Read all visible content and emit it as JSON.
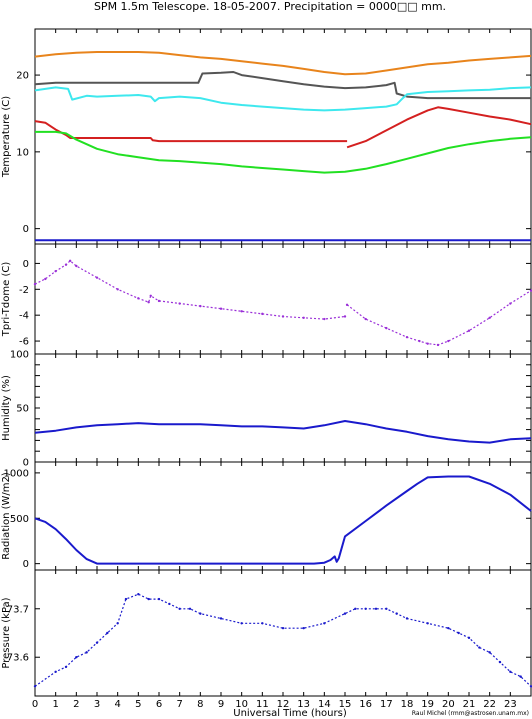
{
  "title": "SPM 1.5m Telescope. 18-05-2007. Precipitation = 0000□□ mm.",
  "credit": "Raul Michel (rmm@astrosen.unam.mx)",
  "colors": {
    "orange": "#e8841c",
    "gray": "#555555",
    "cyan": "#3ee8ee",
    "red": "#d42020",
    "green": "#22e022",
    "blue": "#1a1acc",
    "purple": "#9a30d8"
  },
  "chart_data": [
    {
      "type": "line",
      "ylabel": "Temperature (C)",
      "ylim": [
        -2,
        26
      ],
      "yticks": [
        0,
        10,
        20
      ],
      "xlim": [
        0,
        24
      ],
      "series": [
        {
          "color": "orange",
          "x": [
            0,
            1,
            2,
            3,
            4,
            5,
            6,
            7,
            8,
            9,
            10,
            11,
            12,
            13,
            14,
            15,
            16,
            17,
            18,
            19,
            20,
            21,
            22,
            23,
            24
          ],
          "y": [
            22.4,
            22.7,
            22.9,
            23.0,
            23.0,
            23.0,
            22.9,
            22.6,
            22.3,
            22.1,
            21.8,
            21.5,
            21.2,
            20.8,
            20.4,
            20.1,
            20.2,
            20.6,
            21.0,
            21.4,
            21.6,
            21.9,
            22.1,
            22.3,
            22.5
          ]
        },
        {
          "color": "gray",
          "x": [
            0,
            1,
            2,
            3,
            4,
            5,
            6,
            7,
            7.9,
            8.1,
            9,
            9.6,
            10,
            11,
            12,
            13,
            14,
            15,
            16,
            17,
            17.4,
            17.5,
            18,
            19,
            20,
            21,
            22,
            23,
            24
          ],
          "y": [
            18.8,
            19.0,
            19.0,
            19.0,
            19.0,
            19.0,
            19.0,
            19.0,
            19.0,
            20.2,
            20.3,
            20.4,
            20.0,
            19.6,
            19.2,
            18.8,
            18.5,
            18.3,
            18.4,
            18.7,
            19.0,
            17.6,
            17.2,
            17.0,
            17.0,
            17.0,
            17.0,
            17.0,
            17.0
          ]
        },
        {
          "color": "cyan",
          "x": [
            0,
            1,
            1.6,
            1.8,
            2.5,
            3,
            4,
            5,
            5.6,
            5.8,
            6,
            7,
            8,
            9,
            10,
            11,
            12,
            13,
            14,
            15,
            16,
            17,
            17.5,
            17.8,
            18,
            19,
            20,
            21,
            22,
            23,
            24
          ],
          "y": [
            18.0,
            18.4,
            18.2,
            16.8,
            17.3,
            17.2,
            17.3,
            17.4,
            17.2,
            16.6,
            17.0,
            17.2,
            17.0,
            16.4,
            16.1,
            15.9,
            15.7,
            15.5,
            15.4,
            15.5,
            15.7,
            15.9,
            16.2,
            17.0,
            17.5,
            17.8,
            17.9,
            18.0,
            18.1,
            18.3,
            18.4
          ]
        },
        {
          "color": "red",
          "x": [
            0,
            0.5,
            1,
            1.5,
            1.7,
            2,
            3,
            4,
            5,
            5.6,
            5.7,
            6,
            7,
            8,
            9,
            10,
            11,
            12,
            13,
            14,
            15.1
          ],
          "y": [
            14.0,
            13.8,
            12.9,
            12.2,
            11.8,
            11.8,
            11.8,
            11.8,
            11.8,
            11.8,
            11.5,
            11.4,
            11.4,
            11.4,
            11.4,
            11.4,
            11.4,
            11.4,
            11.4,
            11.4,
            11.4
          ]
        },
        {
          "color": "red",
          "x": [
            15.1,
            16,
            17,
            18,
            19,
            19.5,
            20,
            21,
            22,
            23,
            24
          ],
          "y": [
            10.6,
            11.4,
            12.8,
            14.2,
            15.4,
            15.8,
            15.6,
            15.1,
            14.6,
            14.2,
            13.6
          ]
        },
        {
          "color": "green",
          "x": [
            0,
            1,
            1.5,
            2,
            3,
            4,
            5,
            6,
            7,
            8,
            9,
            10,
            11,
            12,
            13,
            14,
            15,
            16,
            17,
            18,
            19,
            20,
            21,
            22,
            23,
            24
          ],
          "y": [
            12.6,
            12.6,
            12.4,
            11.6,
            10.4,
            9.7,
            9.3,
            8.9,
            8.8,
            8.6,
            8.4,
            8.1,
            7.9,
            7.7,
            7.5,
            7.3,
            7.4,
            7.8,
            8.4,
            9.1,
            9.8,
            10.5,
            11.0,
            11.4,
            11.7,
            11.9
          ]
        },
        {
          "color": "blue",
          "x": [
            0,
            24
          ],
          "y": [
            -1.5,
            -1.5
          ]
        }
      ]
    },
    {
      "type": "scatter",
      "ylabel": "Tpri-Tdome (C)",
      "ylim": [
        -7,
        1.5
      ],
      "yticks": [
        -6,
        -4,
        -2,
        0
      ],
      "xlim": [
        0,
        24
      ],
      "series": [
        {
          "color": "purple",
          "x": [
            0,
            0.5,
            1,
            1.5,
            1.7,
            2,
            3,
            4,
            5,
            5.5,
            5.6,
            6,
            7,
            8,
            9,
            10,
            11,
            12,
            13,
            14,
            15
          ],
          "y": [
            -1.6,
            -1.2,
            -0.6,
            -0.1,
            0.2,
            -0.2,
            -1.1,
            -2.0,
            -2.7,
            -3.0,
            -2.5,
            -2.9,
            -3.1,
            -3.3,
            -3.5,
            -3.7,
            -3.9,
            -4.1,
            -4.2,
            -4.3,
            -4.1
          ]
        },
        {
          "color": "purple",
          "x": [
            15.1,
            16,
            17,
            18,
            18.6,
            19,
            19.5,
            20,
            21,
            22,
            23,
            24
          ],
          "y": [
            -3.2,
            -4.3,
            -5.0,
            -5.7,
            -6.0,
            -6.2,
            -6.3,
            -6.0,
            -5.2,
            -4.2,
            -3.1,
            -2.1
          ]
        }
      ]
    },
    {
      "type": "line",
      "ylabel": "Humidity (%)",
      "ylim": [
        0,
        100
      ],
      "yticks": [
        0,
        10,
        20,
        30,
        40,
        50,
        60,
        70,
        80,
        90,
        100
      ],
      "ytick_labels": [
        "0",
        "",
        "",
        "",
        "",
        "50",
        "",
        "",
        "",
        "",
        "100"
      ],
      "xlim": [
        0,
        24
      ],
      "series": [
        {
          "color": "blue",
          "x": [
            0,
            1,
            2,
            3,
            4,
            5,
            6,
            7,
            8,
            9,
            10,
            11,
            12,
            13,
            14,
            15,
            16,
            17,
            18,
            19,
            20,
            21,
            22,
            23,
            24
          ],
          "y": [
            27,
            29,
            32,
            34,
            35,
            36,
            35,
            35,
            35,
            34,
            33,
            33,
            32,
            31,
            34,
            38,
            35,
            31,
            28,
            24,
            21,
            19,
            18,
            21,
            22
          ]
        }
      ]
    },
    {
      "type": "line",
      "ylabel": "Radiation (W/m2)",
      "ylim": [
        -70,
        1120
      ],
      "yticks": [
        0,
        500,
        1000
      ],
      "xlim": [
        0,
        24
      ],
      "series": [
        {
          "color": "blue",
          "x": [
            0,
            0.5,
            1,
            1.5,
            2,
            2.5,
            3,
            4,
            5,
            6,
            7,
            8,
            9,
            10,
            11,
            12,
            13,
            13.5,
            14,
            14.3,
            14.5,
            14.6,
            14.7,
            15,
            16,
            17,
            18,
            18.5,
            19,
            20,
            21,
            22,
            23,
            24
          ],
          "y": [
            500,
            460,
            380,
            270,
            150,
            50,
            0,
            0,
            0,
            0,
            0,
            0,
            0,
            0,
            0,
            0,
            0,
            0,
            10,
            40,
            80,
            20,
            60,
            300,
            470,
            640,
            800,
            880,
            950,
            960,
            960,
            880,
            760,
            580
          ]
        }
      ]
    },
    {
      "type": "scatter",
      "ylabel": "Pressure (kPa)",
      "ylim": [
        73.52,
        73.78
      ],
      "yticks": [
        73.6,
        73.7
      ],
      "xlim": [
        0,
        24
      ],
      "xlabel": "Universal Time (hours)",
      "xticks": [
        0,
        1,
        2,
        3,
        4,
        5,
        6,
        7,
        8,
        9,
        10,
        11,
        12,
        13,
        14,
        15,
        16,
        17,
        18,
        19,
        20,
        21,
        22,
        23
      ],
      "series": [
        {
          "color": "blue",
          "x": [
            0,
            1,
            1.5,
            2,
            2.5,
            3,
            3.5,
            4,
            4.4,
            5,
            5.5,
            6,
            6.5,
            7,
            7.5,
            8,
            9,
            10,
            11,
            12,
            13,
            14,
            15,
            15.5,
            16,
            16.5,
            17,
            17.5,
            18,
            19,
            20,
            20.5,
            21,
            21.5,
            22,
            22.5,
            23,
            23.5,
            24
          ],
          "y": [
            73.54,
            73.57,
            73.58,
            73.6,
            73.61,
            73.63,
            73.65,
            73.67,
            73.72,
            73.73,
            73.72,
            73.72,
            73.71,
            73.7,
            73.7,
            73.69,
            73.68,
            73.67,
            73.67,
            73.66,
            73.66,
            73.67,
            73.69,
            73.7,
            73.7,
            73.7,
            73.7,
            73.69,
            73.68,
            73.67,
            73.66,
            73.65,
            73.64,
            73.62,
            73.61,
            73.59,
            73.57,
            73.56,
            73.54
          ]
        }
      ]
    }
  ]
}
